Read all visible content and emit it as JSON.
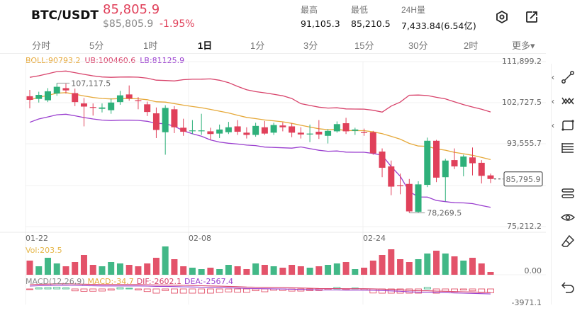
{
  "header": {
    "pair": "BTC/USDT",
    "last_price": "85,805.9",
    "usd_price": "$85,805.9",
    "change": "-1.95%",
    "high_label": "最高",
    "high_value": "91,105.3",
    "low_label": "最低",
    "low_value": "85,210.5",
    "volume_label": "24H量",
    "volume_value": "7,433.84(6.54亿)"
  },
  "tabs": [
    "分时",
    "5分",
    "1时",
    "1日",
    "1分",
    "3分",
    "15分",
    "30分",
    "2时",
    "更多▾"
  ],
  "active_tab": "1日",
  "indicators": {
    "boll": "BOLL:90793.2",
    "ub": "UB:100460.6",
    "lb": "LB:81125.9",
    "vol": "Vol:203.5",
    "macd": "MACD(12,26,9)",
    "macd_val": "MACD:-34.7",
    "dif": "DIF:-2602.1",
    "dea": "DEA:-2567.4"
  },
  "chart_data": {
    "type": "candlestick",
    "price_axis_ticks": [
      "111,899.2",
      "102,727.5",
      "93,555.7",
      "75,212.2"
    ],
    "price_range": [
      75212.2,
      111899.2
    ],
    "date_ticks": [
      "01-22",
      "02-08",
      "02-24"
    ],
    "current_price_label": "85,795.9",
    "high_annotation": "107,117.5",
    "low_annotation": "78,269.5",
    "volume_ticks": [
      "0.00"
    ],
    "macd_ticks": [
      "-3971.1"
    ],
    "candles": [
      {
        "o": 104200,
        "c": 103400,
        "h": 105600,
        "l": 101500,
        "v": 0.5
      },
      {
        "o": 103600,
        "c": 104500,
        "h": 105200,
        "l": 102800,
        "v": 0.3
      },
      {
        "o": 103300,
        "c": 105300,
        "h": 106000,
        "l": 102900,
        "v": 0.6
      },
      {
        "o": 104800,
        "c": 106300,
        "h": 107117.5,
        "l": 104300,
        "v": 0.4
      },
      {
        "o": 106000,
        "c": 105500,
        "h": 107000,
        "l": 104800,
        "v": 0.3
      },
      {
        "o": 104900,
        "c": 102900,
        "h": 105900,
        "l": 102000,
        "v": 0.45
      },
      {
        "o": 102600,
        "c": 101900,
        "h": 103800,
        "l": 97500,
        "v": 0.7
      },
      {
        "o": 101800,
        "c": 101700,
        "h": 102600,
        "l": 99900,
        "v": 0.35
      },
      {
        "o": 101400,
        "c": 101700,
        "h": 102600,
        "l": 100600,
        "v": 0.3
      },
      {
        "o": 101100,
        "c": 102800,
        "h": 103700,
        "l": 100300,
        "v": 0.45
      },
      {
        "o": 102900,
        "c": 104400,
        "h": 105400,
        "l": 102300,
        "v": 0.4
      },
      {
        "o": 104600,
        "c": 103700,
        "h": 106600,
        "l": 103200,
        "v": 0.35
      },
      {
        "o": 103300,
        "c": 103100,
        "h": 104000,
        "l": 101300,
        "v": 0.3
      },
      {
        "o": 102400,
        "c": 100700,
        "h": 103000,
        "l": 99800,
        "v": 0.4
      },
      {
        "o": 100400,
        "c": 96700,
        "h": 101700,
        "l": 94900,
        "v": 0.6
      },
      {
        "o": 96200,
        "c": 101600,
        "h": 102200,
        "l": 91200,
        "v": 1.0
      },
      {
        "o": 101300,
        "c": 97300,
        "h": 102000,
        "l": 96000,
        "v": 0.55
      },
      {
        "o": 97200,
        "c": 96300,
        "h": 99200,
        "l": 95400,
        "v": 0.3
      },
      {
        "o": 96600,
        "c": 96600,
        "h": 98900,
        "l": 95800,
        "v": 0.25
      },
      {
        "o": 96600,
        "c": 96600,
        "h": 100300,
        "l": 95600,
        "v": 0.2
      },
      {
        "o": 96400,
        "c": 95800,
        "h": 97200,
        "l": 94500,
        "v": 0.25
      },
      {
        "o": 95900,
        "c": 96800,
        "h": 97900,
        "l": 94900,
        "v": 0.2
      },
      {
        "o": 96200,
        "c": 97300,
        "h": 98500,
        "l": 95800,
        "v": 0.35
      },
      {
        "o": 97500,
        "c": 96300,
        "h": 98900,
        "l": 95600,
        "v": 0.3
      },
      {
        "o": 96100,
        "c": 95600,
        "h": 97300,
        "l": 94800,
        "v": 0.2
      },
      {
        "o": 95600,
        "c": 97600,
        "h": 98300,
        "l": 95200,
        "v": 0.4
      },
      {
        "o": 97300,
        "c": 95900,
        "h": 98700,
        "l": 95600,
        "v": 0.35
      },
      {
        "o": 96100,
        "c": 97800,
        "h": 98300,
        "l": 95600,
        "v": 0.3
      },
      {
        "o": 97700,
        "c": 97300,
        "h": 98400,
        "l": 96400,
        "v": 0.25
      },
      {
        "o": 97500,
        "c": 96100,
        "h": 98200,
        "l": 95100,
        "v": 0.35
      },
      {
        "o": 96100,
        "c": 95700,
        "h": 97300,
        "l": 94800,
        "v": 0.3
      },
      {
        "o": 95700,
        "c": 95900,
        "h": 97900,
        "l": 94000,
        "v": 0.25
      },
      {
        "o": 96300,
        "c": 95700,
        "h": 98900,
        "l": 94700,
        "v": 0.3
      },
      {
        "o": 95400,
        "c": 96500,
        "h": 96900,
        "l": 93700,
        "v": 0.35
      },
      {
        "o": 96400,
        "c": 98000,
        "h": 98600,
        "l": 96100,
        "v": 0.4
      },
      {
        "o": 98200,
        "c": 96400,
        "h": 99400,
        "l": 95800,
        "v": 0.45
      },
      {
        "o": 96500,
        "c": 96800,
        "h": 97200,
        "l": 95600,
        "v": 0.2
      },
      {
        "o": 96200,
        "c": 96100,
        "h": 97000,
        "l": 95400,
        "v": 0.25
      },
      {
        "o": 96200,
        "c": 91500,
        "h": 96500,
        "l": 91200,
        "v": 0.5
      },
      {
        "o": 91900,
        "c": 88300,
        "h": 92600,
        "l": 86200,
        "v": 0.7
      },
      {
        "o": 88600,
        "c": 84100,
        "h": 89900,
        "l": 82200,
        "v": 0.9
      },
      {
        "o": 84400,
        "c": 84200,
        "h": 87000,
        "l": 82400,
        "v": 0.55
      },
      {
        "o": 84700,
        "c": 78600,
        "h": 85800,
        "l": 78269.5,
        "v": 0.45
      },
      {
        "o": 78500,
        "c": 84600,
        "h": 85300,
        "l": 78269.5,
        "v": 0.55
      },
      {
        "o": 84500,
        "c": 94300,
        "h": 95000,
        "l": 84000,
        "v": 0.75
      },
      {
        "o": 94300,
        "c": 86100,
        "h": 94500,
        "l": 85100,
        "v": 0.85
      },
      {
        "o": 86200,
        "c": 89900,
        "h": 90300,
        "l": 80800,
        "v": 0.75
      },
      {
        "o": 90000,
        "c": 88600,
        "h": 92600,
        "l": 88000,
        "v": 0.65
      },
      {
        "o": 88500,
        "c": 90800,
        "h": 91200,
        "l": 86400,
        "v": 0.5
      },
      {
        "o": 90600,
        "c": 89300,
        "h": 92800,
        "l": 86600,
        "v": 0.6
      },
      {
        "o": 89400,
        "c": 86500,
        "h": 90000,
        "l": 84800,
        "v": 0.4
      },
      {
        "o": 86600,
        "c": 85800,
        "h": 87000,
        "l": 84900,
        "v": 0.1
      }
    ]
  },
  "colors": {
    "up": "#2eb07a",
    "down": "#e0405a",
    "boll_mid": "#e6a93a",
    "boll_ub": "#d8436b",
    "boll_lb": "#9a3fcf"
  },
  "toolbar_icons": [
    "trendline-icon",
    "pattern-icon",
    "rectangle-icon",
    "fib-levels-icon",
    "measure-icon",
    "eye-icon",
    "eraser-icon",
    "undo-icon"
  ]
}
